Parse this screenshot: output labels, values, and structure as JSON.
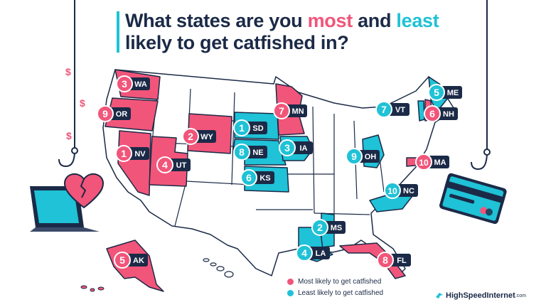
{
  "title": {
    "part1": "What states are you ",
    "most": "most",
    "part2": " and ",
    "least": "least",
    "part3": "likely to get catfished in?"
  },
  "colors": {
    "most": "#f2557a",
    "least": "#1fc2d6",
    "neutral": "#ffffff",
    "border": "#1b2a47",
    "label_bg": "#1b2a47"
  },
  "legend": {
    "most_label": "Most likely to get catfished",
    "least_label": "Least likely to get catfished"
  },
  "brand": {
    "name": "HighSpeedInternet",
    "suffix": ".com"
  },
  "decor": {
    "dollar_signs": [
      "$",
      "$",
      "$"
    ]
  },
  "states": [
    {
      "abbr": "WA",
      "rank": "3",
      "category": "most"
    },
    {
      "abbr": "OR",
      "rank": "9",
      "category": "most"
    },
    {
      "abbr": "NV",
      "rank": "1",
      "category": "most"
    },
    {
      "abbr": "UT",
      "rank": "4",
      "category": "most"
    },
    {
      "abbr": "WY",
      "rank": "2",
      "category": "most"
    },
    {
      "abbr": "MN",
      "rank": "7",
      "category": "most"
    },
    {
      "abbr": "SD",
      "rank": "1",
      "category": "least"
    },
    {
      "abbr": "NE",
      "rank": "8",
      "category": "least"
    },
    {
      "abbr": "IA",
      "rank": "3",
      "category": "least"
    },
    {
      "abbr": "KS",
      "rank": "6",
      "category": "least"
    },
    {
      "abbr": "OH",
      "rank": "9",
      "category": "least"
    },
    {
      "abbr": "VT",
      "rank": "7",
      "category": "least"
    },
    {
      "abbr": "ME",
      "rank": "5",
      "category": "least"
    },
    {
      "abbr": "NH",
      "rank": "6",
      "category": "most"
    },
    {
      "abbr": "MA",
      "rank": "10",
      "category": "most"
    },
    {
      "abbr": "NC",
      "rank": "10",
      "category": "least"
    },
    {
      "abbr": "MS",
      "rank": "2",
      "category": "least"
    },
    {
      "abbr": "LA",
      "rank": "4",
      "category": "least"
    },
    {
      "abbr": "FL",
      "rank": "8",
      "category": "most"
    },
    {
      "abbr": "AK",
      "rank": "5",
      "category": "most"
    }
  ]
}
